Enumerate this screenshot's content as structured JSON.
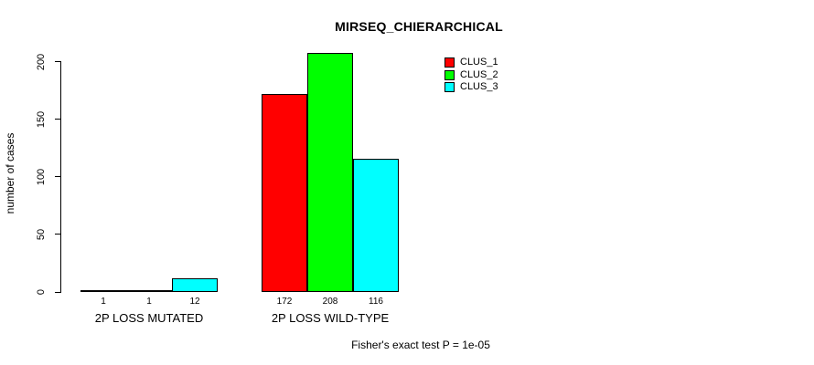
{
  "chart_data": {
    "type": "bar",
    "title": "MIRSEQ_CHIERARCHICAL",
    "xlabel": "",
    "ylabel": "number of cases",
    "categories": [
      "2P LOSS MUTATED",
      "2P LOSS WILD-TYPE"
    ],
    "series": [
      {
        "name": "CLUS_1",
        "color": "#FF0000",
        "values": [
          1,
          172
        ]
      },
      {
        "name": "CLUS_2",
        "color": "#00FF00",
        "values": [
          1,
          208
        ]
      },
      {
        "name": "CLUS_3",
        "color": "#00FFFF",
        "values": [
          12,
          116
        ]
      }
    ],
    "bar_value_labels": [
      [
        "1",
        "1",
        "12"
      ],
      [
        "172",
        "208",
        "116"
      ]
    ],
    "yticks": [
      "0",
      "50",
      "100",
      "150",
      "200"
    ],
    "ylim": [
      0,
      215
    ],
    "grid": false,
    "legend_position": "top-right",
    "legend_entries": [
      "CLUS_1",
      "CLUS_2",
      "CLUS_3"
    ],
    "annotation": "Fisher's exact test P = 1e-05"
  },
  "colors": {
    "background": "#FFFFFF",
    "axis": "#000000",
    "text": "#000000"
  }
}
